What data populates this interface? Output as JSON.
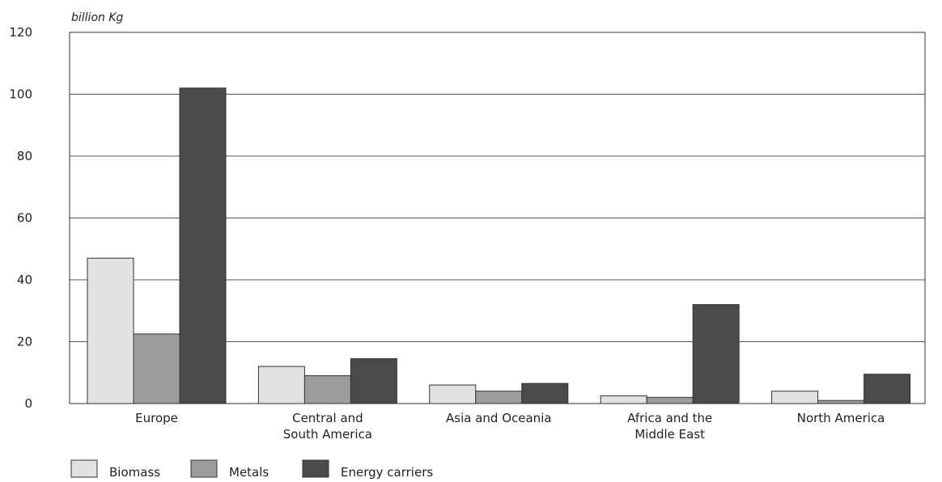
{
  "chart_data": {
    "type": "bar",
    "unit_label": "billion Kg",
    "categories": [
      [
        "Europe"
      ],
      [
        "Central and",
        "South America"
      ],
      [
        "Asia and Oceania"
      ],
      [
        "Africa and the",
        "Middle East"
      ],
      [
        "North America"
      ]
    ],
    "series": [
      {
        "name": "Biomass",
        "color": "#e2e2e4",
        "values": [
          47,
          12,
          6,
          2.5,
          4
        ]
      },
      {
        "name": "Metals",
        "color": "#9c9c9c",
        "values": [
          22.5,
          9,
          4,
          2,
          1
        ]
      },
      {
        "name": "Energy carriers",
        "color": "#4a4a4c",
        "values": [
          102,
          14.5,
          6.5,
          32,
          9.5
        ]
      }
    ],
    "ylim": [
      0,
      120
    ],
    "yticks": [
      0,
      20,
      40,
      60,
      80,
      100,
      120
    ],
    "grid": true,
    "legend_position": "bottom-left"
  }
}
